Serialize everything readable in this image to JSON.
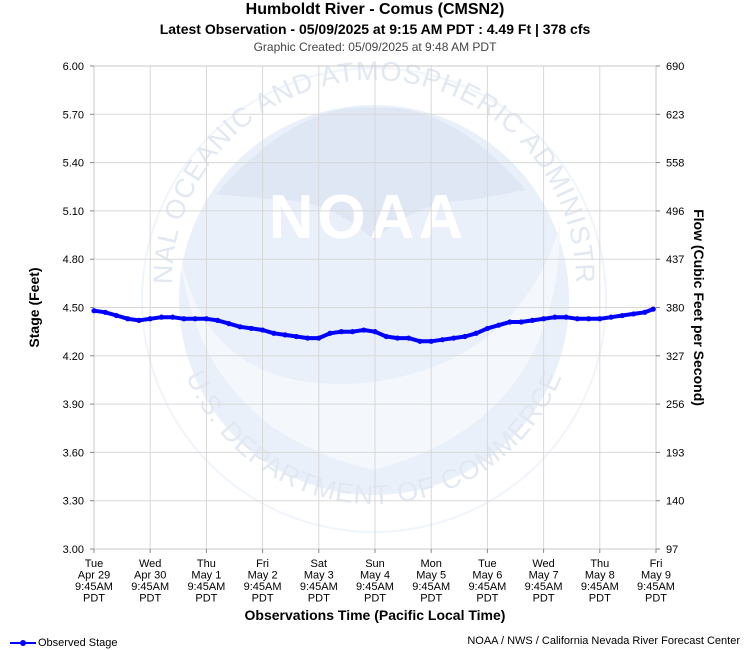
{
  "header": {
    "title": "Humboldt River - Comus (CMSN2)",
    "subtitle": "Latest Observation - 05/09/2025 at 9:15 AM PDT : 4.49 Ft | 378 cfs",
    "created": "Graphic Created: 05/09/2025 at 9:48 AM PDT"
  },
  "watermark": {
    "ring_text": "NATIONAL OCEANIC AND ATMOSPHERIC ADMINISTRATION",
    "bottom_text": "U.S. DEPARTMENT OF COMMERCE",
    "logo_text": "NOAA"
  },
  "footer": {
    "legend_label": "Observed Stage",
    "credit": "NOAA / NWS / California Nevada River Forecast Center"
  },
  "colors": {
    "series": "#0000ff",
    "grid": "#d8d8d8",
    "watermark": "#e9f0fa"
  },
  "chart_data": {
    "type": "line",
    "xlabel": "Observations Time (Pacific Local Time)",
    "ylabel": "Stage (Feet)",
    "y2label": "Flow (Cubic Feet per Second)",
    "ylim": [
      3.0,
      6.0
    ],
    "yticks": [
      "3.00",
      "3.30",
      "3.60",
      "3.90",
      "4.20",
      "4.50",
      "4.80",
      "5.10",
      "5.40",
      "5.70",
      "6.00"
    ],
    "y2ticks": [
      "97",
      "140",
      "193",
      "256",
      "327",
      "380",
      "437",
      "496",
      "558",
      "623",
      "690"
    ],
    "xlim_days": [
      0,
      10
    ],
    "xticks": [
      [
        "Tue",
        "Apr 29",
        "9:45AM",
        "PDT"
      ],
      [
        "Wed",
        "Apr 30",
        "9:45AM",
        "PDT"
      ],
      [
        "Thu",
        "May 1",
        "9:45AM",
        "PDT"
      ],
      [
        "Fri",
        "May 2",
        "9:45AM",
        "PDT"
      ],
      [
        "Sat",
        "May 3",
        "9:45AM",
        "PDT"
      ],
      [
        "Sun",
        "May 4",
        "9:45AM",
        "PDT"
      ],
      [
        "Mon",
        "May 5",
        "9:45AM",
        "PDT"
      ],
      [
        "Tue",
        "May 6",
        "9:45AM",
        "PDT"
      ],
      [
        "Wed",
        "May 7",
        "9:45AM",
        "PDT"
      ],
      [
        "Thu",
        "May 8",
        "9:45AM",
        "PDT"
      ],
      [
        "Fri",
        "May 9",
        "9:45AM",
        "PDT"
      ]
    ],
    "grid": true,
    "legend": "bottom-left",
    "series": [
      {
        "name": "Observed Stage",
        "x": [
          0,
          0.2,
          0.4,
          0.6,
          0.8,
          1.0,
          1.2,
          1.4,
          1.6,
          1.8,
          2.0,
          2.2,
          2.4,
          2.6,
          2.8,
          3.0,
          3.2,
          3.4,
          3.6,
          3.8,
          4.0,
          4.2,
          4.4,
          4.6,
          4.8,
          5.0,
          5.2,
          5.4,
          5.6,
          5.8,
          6.0,
          6.2,
          6.4,
          6.6,
          6.8,
          7.0,
          7.2,
          7.4,
          7.6,
          7.8,
          8.0,
          8.2,
          8.4,
          8.6,
          8.8,
          9.0,
          9.2,
          9.4,
          9.6,
          9.8,
          9.95
        ],
        "y": [
          4.48,
          4.47,
          4.45,
          4.43,
          4.42,
          4.43,
          4.44,
          4.44,
          4.43,
          4.43,
          4.43,
          4.42,
          4.4,
          4.38,
          4.37,
          4.36,
          4.34,
          4.33,
          4.32,
          4.31,
          4.31,
          4.34,
          4.35,
          4.35,
          4.36,
          4.35,
          4.32,
          4.31,
          4.31,
          4.29,
          4.29,
          4.3,
          4.31,
          4.32,
          4.34,
          4.37,
          4.39,
          4.41,
          4.41,
          4.42,
          4.43,
          4.44,
          4.44,
          4.43,
          4.43,
          4.43,
          4.44,
          4.45,
          4.46,
          4.47,
          4.49
        ]
      }
    ]
  }
}
